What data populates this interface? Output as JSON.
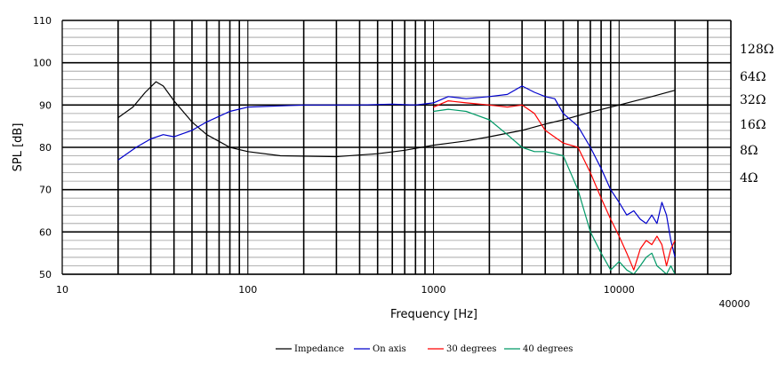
{
  "chart_data": {
    "type": "line",
    "title": "",
    "xlabel": "Frequency [Hz]",
    "ylabel": "SPL [dB]",
    "xscale": "log",
    "xlim": [
      10,
      40000
    ],
    "ylim": [
      50,
      110
    ],
    "x_tick_labels": [
      "10",
      "100",
      "1000",
      "10000",
      "40000"
    ],
    "y_tick_labels": [
      "50",
      "60",
      "70",
      "80",
      "90",
      "100",
      "110"
    ],
    "right_axis_tick_labels": [
      "128Ω",
      "64Ω",
      "32Ω",
      "16Ω",
      "8Ω",
      "4Ω"
    ],
    "grid": true,
    "legend_position": "bottom",
    "series": [
      {
        "name": "Impedance",
        "color": "#000000",
        "points": [
          [
            20,
            87
          ],
          [
            24,
            89.5
          ],
          [
            28,
            93
          ],
          [
            32,
            95.5
          ],
          [
            35,
            94.5
          ],
          [
            40,
            91
          ],
          [
            50,
            86
          ],
          [
            60,
            83
          ],
          [
            80,
            80
          ],
          [
            100,
            79
          ],
          [
            150,
            78
          ],
          [
            300,
            77.8
          ],
          [
            500,
            78.5
          ],
          [
            700,
            79.3
          ],
          [
            1000,
            80.5
          ],
          [
            1500,
            81.5
          ],
          [
            2000,
            82.5
          ],
          [
            3000,
            84
          ],
          [
            4000,
            85.5
          ],
          [
            5000,
            86.5
          ],
          [
            7000,
            88.3
          ],
          [
            10000,
            90
          ],
          [
            15000,
            92
          ],
          [
            20000,
            93.5
          ]
        ]
      },
      {
        "name": "On axis",
        "color": "#0000cc",
        "points": [
          [
            20,
            77
          ],
          [
            25,
            80
          ],
          [
            30,
            82
          ],
          [
            35,
            83
          ],
          [
            40,
            82.5
          ],
          [
            50,
            84
          ],
          [
            60,
            86
          ],
          [
            80,
            88.5
          ],
          [
            100,
            89.5
          ],
          [
            200,
            90
          ],
          [
            400,
            90
          ],
          [
            600,
            90.2
          ],
          [
            800,
            90
          ],
          [
            1000,
            90.5
          ],
          [
            1200,
            92
          ],
          [
            1500,
            91.5
          ],
          [
            2000,
            92
          ],
          [
            2500,
            92.5
          ],
          [
            3000,
            94.5
          ],
          [
            3500,
            93
          ],
          [
            4000,
            92
          ],
          [
            4500,
            91.5
          ],
          [
            5000,
            88
          ],
          [
            6000,
            85
          ],
          [
            7000,
            80
          ],
          [
            8000,
            75
          ],
          [
            9000,
            70
          ],
          [
            10000,
            67
          ],
          [
            11000,
            64
          ],
          [
            12000,
            65
          ],
          [
            13000,
            63
          ],
          [
            14000,
            62
          ],
          [
            15000,
            64
          ],
          [
            16000,
            62
          ],
          [
            17000,
            67
          ],
          [
            18000,
            64
          ],
          [
            19000,
            58
          ],
          [
            20000,
            54
          ]
        ]
      },
      {
        "name": "30 degrees",
        "color": "#ff0000",
        "points": [
          [
            1000,
            89.5
          ],
          [
            1200,
            91
          ],
          [
            1500,
            90.5
          ],
          [
            2000,
            90
          ],
          [
            2500,
            89.5
          ],
          [
            3000,
            90
          ],
          [
            3500,
            88
          ],
          [
            4000,
            84
          ],
          [
            5000,
            81
          ],
          [
            6000,
            80
          ],
          [
            7000,
            74
          ],
          [
            8000,
            68
          ],
          [
            9000,
            63
          ],
          [
            10000,
            59
          ],
          [
            11000,
            55
          ],
          [
            12000,
            51
          ],
          [
            13000,
            56
          ],
          [
            14000,
            58
          ],
          [
            15000,
            57
          ],
          [
            16000,
            59
          ],
          [
            17000,
            57
          ],
          [
            18000,
            52
          ],
          [
            19000,
            56
          ],
          [
            20000,
            58
          ]
        ]
      },
      {
        "name": "40 degrees",
        "color": "#009966",
        "points": [
          [
            1000,
            88.5
          ],
          [
            1200,
            89
          ],
          [
            1500,
            88.5
          ],
          [
            2000,
            86.5
          ],
          [
            2500,
            83
          ],
          [
            3000,
            80
          ],
          [
            3500,
            79
          ],
          [
            4000,
            79
          ],
          [
            5000,
            78
          ],
          [
            6000,
            70
          ],
          [
            7000,
            60
          ],
          [
            8000,
            55
          ],
          [
            9000,
            51
          ],
          [
            10000,
            53
          ],
          [
            11000,
            51
          ],
          [
            12000,
            50
          ],
          [
            13000,
            52
          ],
          [
            14000,
            54
          ],
          [
            15000,
            55
          ],
          [
            16000,
            52
          ],
          [
            17000,
            51
          ],
          [
            18000,
            50
          ],
          [
            19000,
            52
          ],
          [
            20000,
            50
          ]
        ]
      }
    ]
  }
}
